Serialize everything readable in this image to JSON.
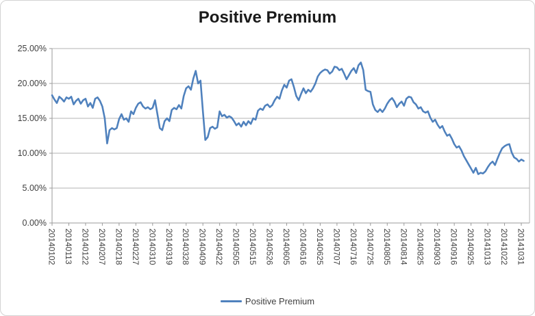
{
  "title": "Positive Premium",
  "legend": {
    "label": "Positive Premium"
  },
  "colors": {
    "series_line": "#4f81bd",
    "gridline": "#b3b3b3",
    "axis_line": "#9a9a9a",
    "tick_label": "#3f3f3f",
    "title_text": "#1a1a1a",
    "chart_border": "#d2d2d2",
    "background": "#ffffff"
  },
  "y_axis": {
    "labels": [
      "25.00%",
      "20.00%",
      "15.00%",
      "10.00%",
      "5.00%",
      "0.00%"
    ]
  },
  "x_axis": {
    "labels": [
      "20140102",
      "20140113",
      "20140122",
      "20140207",
      "20140218",
      "20140227",
      "20140310",
      "20140319",
      "20140328",
      "20140409",
      "20140422",
      "20140505",
      "20140515",
      "20140526",
      "20140605",
      "20140616",
      "20140625",
      "20140707",
      "20140716",
      "20140725",
      "20140805",
      "20140814",
      "20140825",
      "20140903",
      "20140916",
      "20140925",
      "20141013",
      "20141022",
      "20141031"
    ]
  },
  "chart_data": {
    "type": "line",
    "title": "Positive Premium",
    "ylim": [
      0,
      25
    ],
    "y_tick_step": 5,
    "y_tick_format": "percent",
    "grid": true,
    "legend_position": "bottom",
    "x_tick_labels": [
      "20140102",
      "20140113",
      "20140122",
      "20140207",
      "20140218",
      "20140227",
      "20140310",
      "20140319",
      "20140328",
      "20140409",
      "20140422",
      "20140505",
      "20140515",
      "20140526",
      "20140605",
      "20140616",
      "20140625",
      "20140707",
      "20140716",
      "20140725",
      "20140805",
      "20140814",
      "20140825",
      "20140903",
      "20140916",
      "20140925",
      "20141013",
      "20141022",
      "20141031"
    ],
    "points_per_tick": 7,
    "series": [
      {
        "name": "Positive Premium",
        "color": "#4f81bd",
        "values": [
          18.3,
          17.7,
          17.2,
          18.1,
          17.8,
          17.4,
          18.0,
          17.8,
          18.1,
          17.0,
          17.5,
          17.8,
          17.1,
          17.6,
          17.8,
          16.7,
          17.2,
          16.5,
          17.8,
          18.0,
          17.5,
          16.7,
          15.0,
          11.4,
          13.3,
          13.6,
          13.4,
          13.6,
          14.9,
          15.6,
          14.8,
          15.0,
          14.5,
          16.0,
          15.6,
          16.5,
          17.1,
          17.3,
          16.7,
          16.4,
          16.6,
          16.3,
          16.5,
          17.6,
          15.6,
          13.6,
          13.3,
          14.6,
          15.0,
          14.6,
          16.2,
          16.5,
          16.3,
          16.9,
          16.4,
          18.2,
          19.3,
          19.6,
          19.1,
          20.7,
          21.8,
          20.0,
          20.4,
          16.0,
          11.9,
          12.3,
          13.6,
          13.8,
          13.5,
          13.7,
          16.0,
          15.3,
          15.5,
          15.1,
          15.3,
          15.1,
          14.6,
          14.0,
          14.3,
          13.8,
          14.5,
          14.0,
          14.6,
          14.2,
          15.0,
          14.8,
          16.1,
          16.4,
          16.2,
          16.8,
          17.0,
          16.6,
          16.9,
          17.6,
          18.1,
          17.8,
          19.0,
          19.8,
          19.4,
          20.4,
          20.6,
          19.5,
          18.2,
          17.6,
          18.5,
          19.3,
          18.6,
          19.1,
          18.8,
          19.3,
          20.0,
          21.0,
          21.5,
          21.8,
          22.0,
          21.9,
          21.4,
          21.7,
          22.4,
          22.3,
          21.9,
          22.1,
          21.4,
          20.6,
          21.2,
          21.8,
          22.2,
          21.5,
          22.6,
          23.0,
          21.9,
          19.1,
          18.9,
          18.8,
          17.0,
          16.2,
          15.9,
          16.3,
          15.9,
          16.4,
          17.1,
          17.6,
          17.9,
          17.4,
          16.6,
          17.1,
          17.4,
          16.8,
          17.8,
          18.1,
          18.0,
          17.3,
          17.0,
          16.4,
          16.6,
          16.0,
          15.8,
          16.0,
          15.1,
          14.5,
          14.8,
          14.1,
          13.6,
          13.9,
          13.1,
          12.5,
          12.7,
          12.1,
          11.3,
          10.8,
          11.0,
          10.4,
          9.6,
          9.0,
          8.4,
          7.8,
          7.2,
          7.9,
          7.0,
          7.2,
          7.1,
          7.4,
          8.0,
          8.5,
          8.8,
          8.3,
          9.2,
          10.0,
          10.7,
          11.0,
          11.2,
          11.3,
          10.1,
          9.4,
          9.2,
          8.8,
          9.1,
          8.9
        ]
      }
    ]
  }
}
